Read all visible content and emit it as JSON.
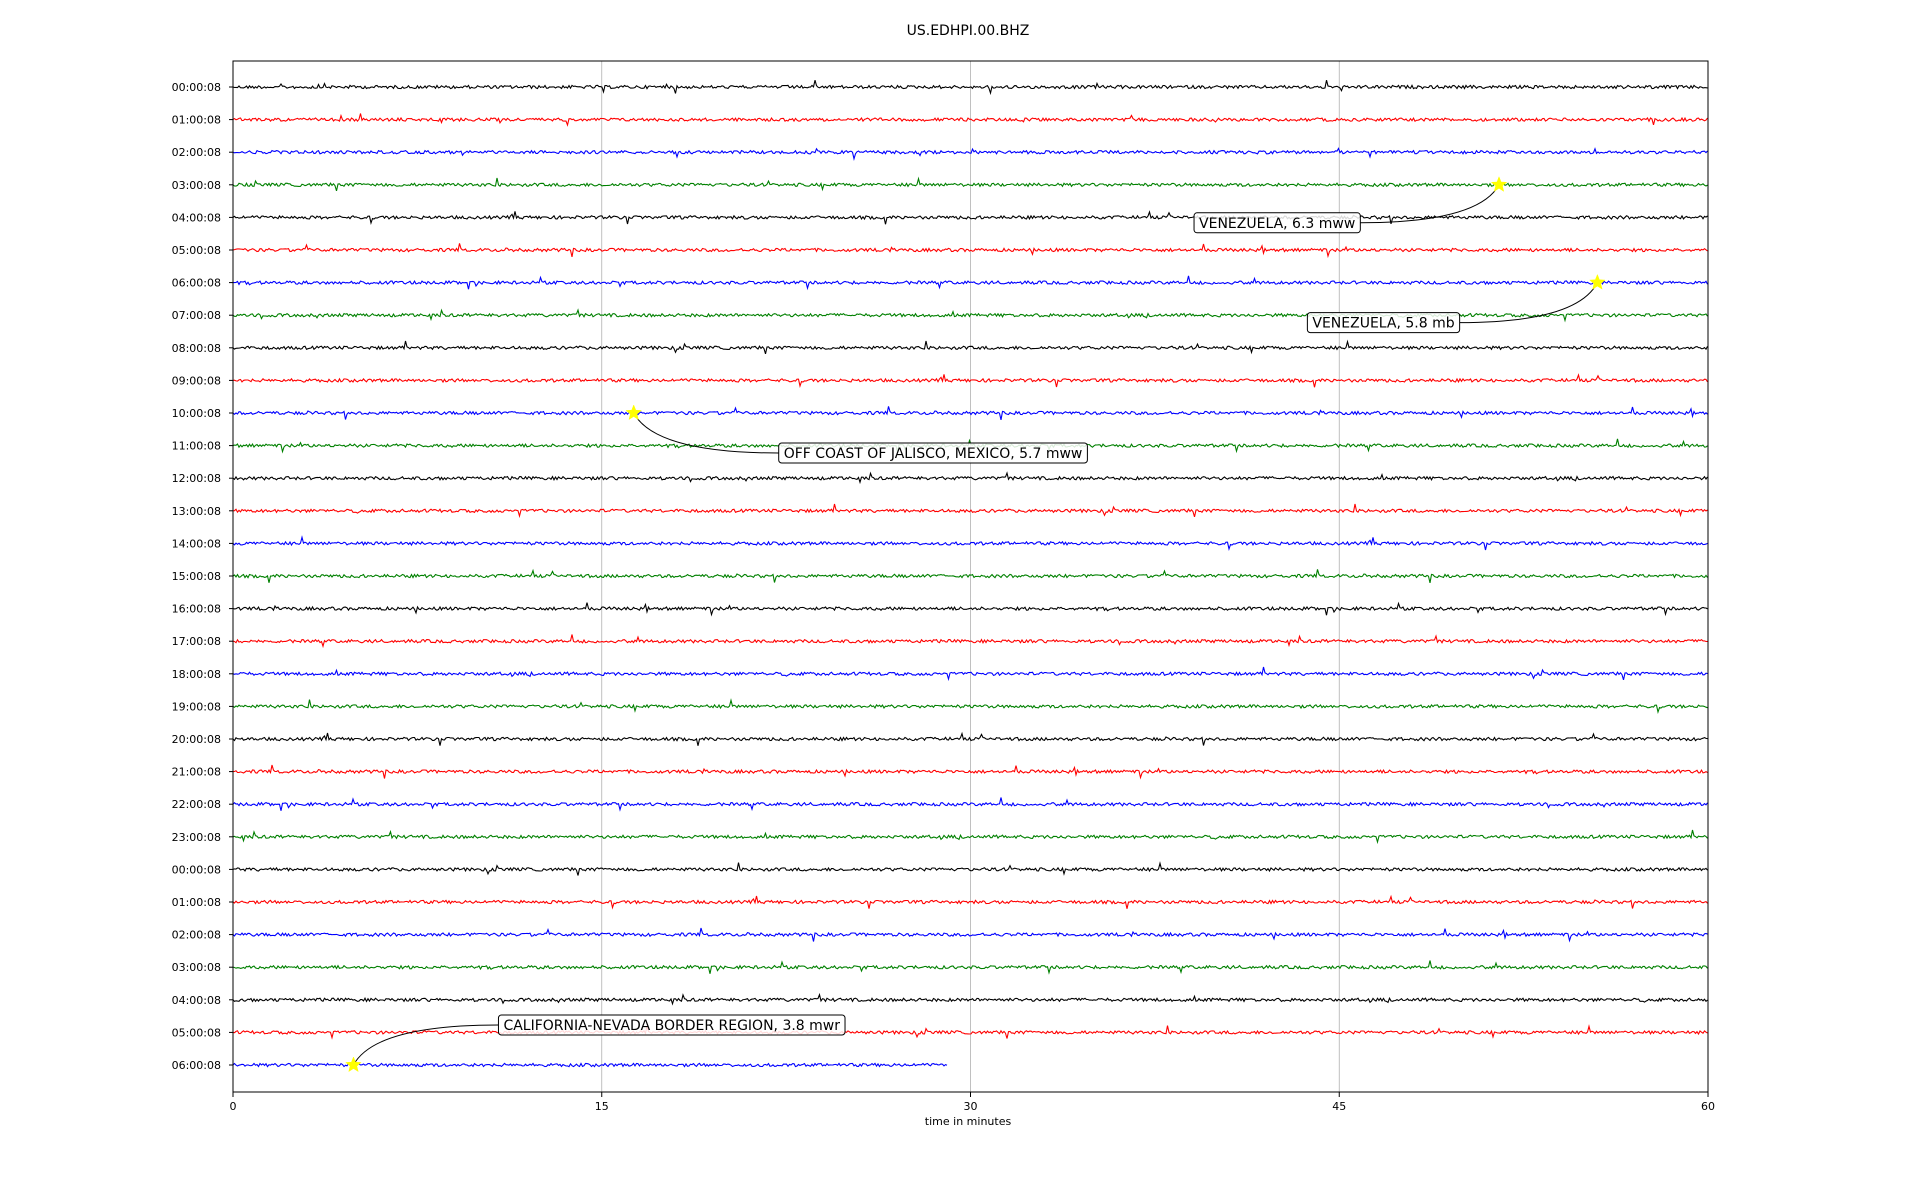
{
  "chart_data": {
    "type": "line",
    "title": "US.EDHPI.00.BHZ",
    "xlabel": "time in minutes",
    "xlim": [
      0,
      60
    ],
    "xticks": [
      "0",
      "15",
      "30",
      "45",
      "60"
    ],
    "grid": "vertical at 15-minute ticks",
    "colors": [
      "#000000",
      "#ff0000",
      "#0000ff",
      "#008000"
    ],
    "traces": [
      {
        "label": "00:00:08",
        "color": "#000000"
      },
      {
        "label": "01:00:08",
        "color": "#ff0000"
      },
      {
        "label": "02:00:08",
        "color": "#0000ff"
      },
      {
        "label": "03:00:08",
        "color": "#008000"
      },
      {
        "label": "04:00:08",
        "color": "#000000"
      },
      {
        "label": "05:00:08",
        "color": "#ff0000"
      },
      {
        "label": "06:00:08",
        "color": "#0000ff"
      },
      {
        "label": "07:00:08",
        "color": "#008000"
      },
      {
        "label": "08:00:08",
        "color": "#000000"
      },
      {
        "label": "09:00:08",
        "color": "#ff0000"
      },
      {
        "label": "10:00:08",
        "color": "#0000ff"
      },
      {
        "label": "11:00:08",
        "color": "#008000"
      },
      {
        "label": "12:00:08",
        "color": "#000000"
      },
      {
        "label": "13:00:08",
        "color": "#ff0000"
      },
      {
        "label": "14:00:08",
        "color": "#0000ff"
      },
      {
        "label": "15:00:08",
        "color": "#008000"
      },
      {
        "label": "16:00:08",
        "color": "#000000"
      },
      {
        "label": "17:00:08",
        "color": "#ff0000"
      },
      {
        "label": "18:00:08",
        "color": "#0000ff"
      },
      {
        "label": "19:00:08",
        "color": "#008000"
      },
      {
        "label": "20:00:08",
        "color": "#000000"
      },
      {
        "label": "21:00:08",
        "color": "#ff0000"
      },
      {
        "label": "22:00:08",
        "color": "#0000ff"
      },
      {
        "label": "23:00:08",
        "color": "#008000"
      },
      {
        "label": "00:00:08",
        "color": "#000000"
      },
      {
        "label": "01:00:08",
        "color": "#ff0000"
      },
      {
        "label": "02:00:08",
        "color": "#0000ff"
      },
      {
        "label": "03:00:08",
        "color": "#008000"
      },
      {
        "label": "04:00:08",
        "color": "#000000"
      },
      {
        "label": "05:00:08",
        "color": "#ff0000"
      },
      {
        "label": "06:00:08",
        "color": "#0000ff",
        "end_minute": 29.1
      }
    ],
    "events": [
      {
        "label": "VENEZUELA, 6.3 mww",
        "trace": 3,
        "minute": 51.5
      },
      {
        "label": "VENEZUELA, 5.8 mb",
        "trace": 6,
        "minute": 55.5
      },
      {
        "label": "OFF COAST OF JALISCO, MEXICO, 5.7 mww",
        "trace": 10,
        "minute": 16.3
      },
      {
        "label": "CALIFORNIA-NEVADA BORDER REGION, 3.8 mwr",
        "trace": 30,
        "minute": 4.9
      }
    ],
    "event_marker_color": "#ffff00"
  }
}
